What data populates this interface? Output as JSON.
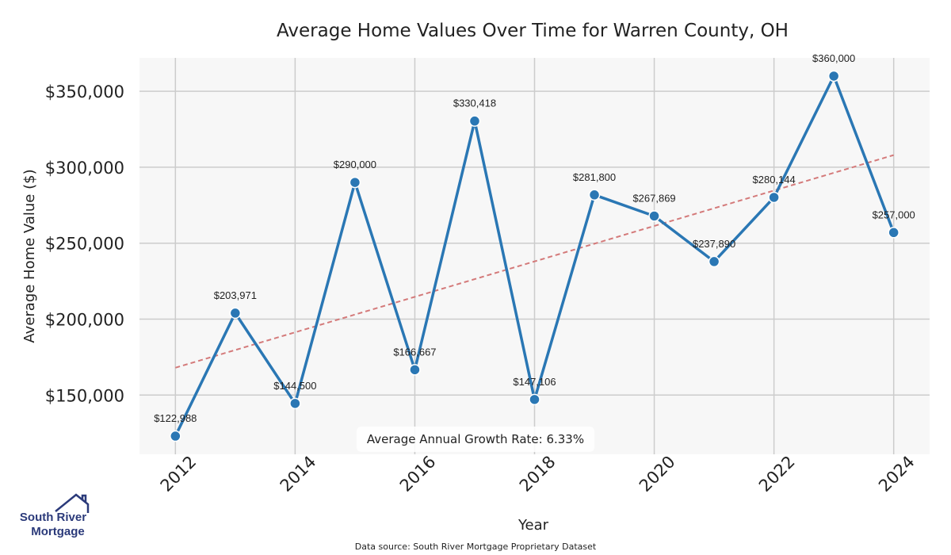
{
  "chart_data": {
    "type": "line",
    "title": "Average Home Values Over Time for Warren County, OH",
    "xlabel": "Year",
    "ylabel": "Average Home Value ($)",
    "x": [
      2012,
      2013,
      2014,
      2015,
      2016,
      2017,
      2018,
      2019,
      2020,
      2021,
      2022,
      2023,
      2024
    ],
    "series": [
      {
        "name": "Average Home Value",
        "color": "#2a77b4",
        "values": [
          122988,
          203971,
          144500,
          290000,
          166667,
          330418,
          147106,
          281800,
          267869,
          237890,
          280144,
          360000,
          257000
        ]
      }
    ],
    "data_labels": [
      "$122,988",
      "$203,971",
      "$144,500",
      "$290,000",
      "$166,667",
      "$330,418",
      "$147,106",
      "$281,800",
      "$267,869",
      "$237,890",
      "$280,144",
      "$360,000",
      "$257,000"
    ],
    "trendline": {
      "color": "#d47a7a",
      "start": [
        2012,
        168000
      ],
      "end": [
        2024,
        308000
      ]
    },
    "x_ticks": [
      2012,
      2014,
      2016,
      2018,
      2020,
      2022,
      2024
    ],
    "y_ticks": [
      150000,
      200000,
      250000,
      300000,
      350000
    ],
    "y_tick_labels": [
      "$150,000",
      "$200,000",
      "$250,000",
      "$300,000",
      "$350,000"
    ],
    "xlim": [
      2011.4,
      2024.6
    ],
    "ylim": [
      111000,
      372000
    ],
    "grid": true,
    "annotation": "Average Annual Growth Rate: 6.33%"
  },
  "branding": {
    "logo_line1": "South River",
    "logo_line2": "Mortgage",
    "logo_icon": "house-icon",
    "brand_color": "#2b3a7a"
  },
  "source_note": "Data source: South River Mortgage Proprietary Dataset"
}
